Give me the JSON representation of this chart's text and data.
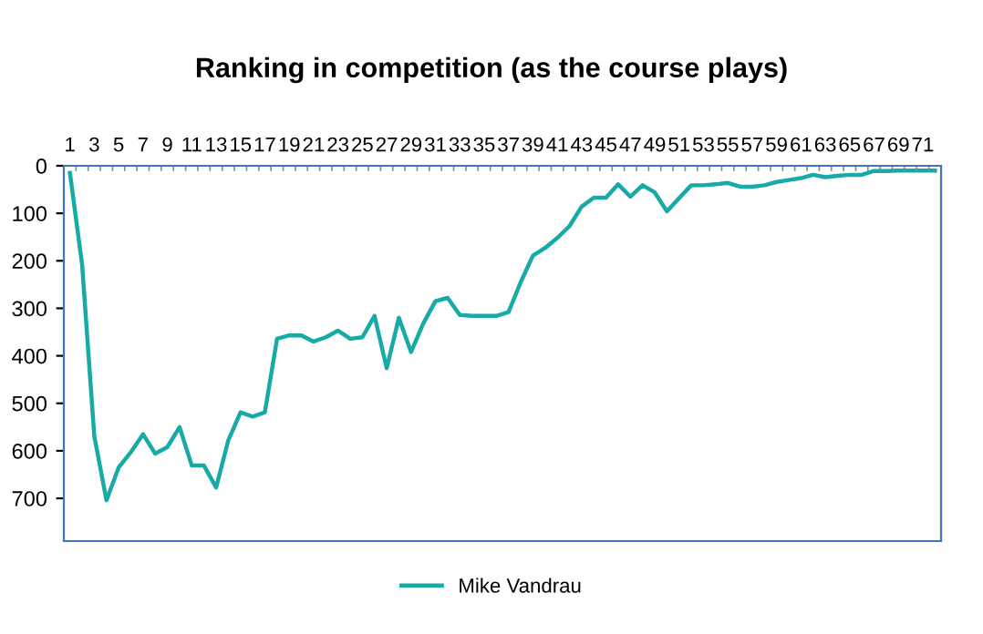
{
  "chart_data": {
    "type": "line",
    "title": "Ranking in competition (as the course plays)",
    "categories": [
      "1",
      null,
      "3",
      null,
      "5",
      null,
      "7",
      null,
      "9",
      null,
      "11",
      null,
      "13",
      null,
      "15",
      null,
      "17",
      null,
      "19",
      null,
      "21",
      null,
      "23",
      null,
      "25",
      null,
      "27",
      null,
      "29",
      null,
      "31",
      null,
      "33",
      null,
      "35",
      null,
      "37",
      null,
      "39",
      null,
      "41",
      null,
      "43",
      null,
      "45",
      null,
      "47",
      null,
      "49",
      null,
      "51",
      null,
      "53",
      null,
      "55",
      null,
      "57",
      null,
      "59",
      null,
      "61",
      null,
      "63",
      null,
      "65",
      null,
      "67",
      null,
      "69",
      null,
      "71",
      null
    ],
    "series": [
      {
        "name": "Mike Vandrau",
        "color": "#17aaa6",
        "values": [
          15,
          208,
          569,
          704,
          635,
          603,
          565,
          606,
          592,
          550,
          631,
          631,
          677,
          578,
          519,
          528,
          519,
          364,
          357,
          357,
          370,
          361,
          347,
          364,
          361,
          316,
          426,
          320,
          392,
          332,
          285,
          278,
          314,
          316,
          316,
          316,
          308,
          245,
          189,
          173,
          152,
          127,
          86,
          67,
          67,
          39,
          65,
          41,
          56,
          96,
          68,
          41,
          41,
          39,
          36,
          44,
          44,
          41,
          34,
          30,
          26,
          19,
          24,
          21,
          19,
          19,
          11,
          11,
          10,
          10,
          10,
          10
        ]
      }
    ],
    "ylim": [
      790,
      0
    ],
    "yticks": [
      0,
      100,
      200,
      300,
      400,
      500,
      600,
      700
    ],
    "legend": "bottom",
    "grid": false,
    "marker": "none",
    "line_style": "solid"
  }
}
